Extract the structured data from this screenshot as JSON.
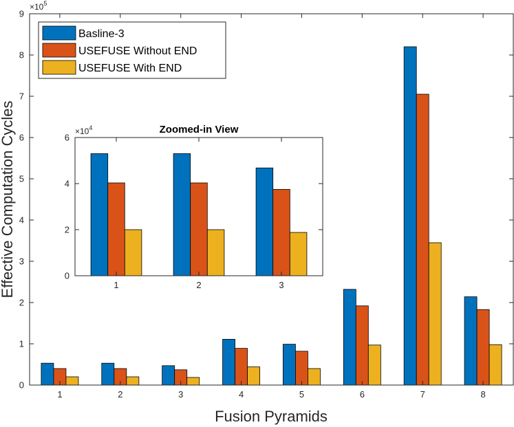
{
  "chart_data": {
    "type": "bar",
    "xlabel": "Fusion Pyramids",
    "ylabel": "Effective Computation Cycles",
    "y_multiplier_base": "×10",
    "y_multiplier_exp": "5",
    "categories": [
      "1",
      "2",
      "3",
      "4",
      "5",
      "6",
      "7",
      "8"
    ],
    "ylim": [
      0,
      900000
    ],
    "yticks": [
      0,
      100000,
      200000,
      300000,
      400000,
      500000,
      600000,
      700000,
      800000,
      900000
    ],
    "ytick_labels": [
      "0",
      "1",
      "2",
      "3",
      "4",
      "5",
      "6",
      "7",
      "8",
      "9"
    ],
    "colors": [
      "#0072BD",
      "#D95319",
      "#EDB120"
    ],
    "series": [
      {
        "name": "Basline-3",
        "values": [
          53000,
          53000,
          47000,
          111000,
          99000,
          232000,
          820000,
          214000
        ]
      },
      {
        "name": "USEFUSE Without END",
        "values": [
          40000,
          40000,
          37000,
          89000,
          82000,
          192000,
          705000,
          183000
        ]
      },
      {
        "name": "USEFUSE With END",
        "values": [
          20000,
          20000,
          18500,
          44000,
          40000,
          97000,
          345000,
          98000
        ]
      }
    ],
    "legend_position": "top-left",
    "inset": {
      "title": "Zoomed-in View",
      "categories": [
        "1",
        "2",
        "3"
      ],
      "ylim": [
        0,
        60000
      ],
      "yticks": [
        0,
        20000,
        40000,
        60000
      ],
      "ytick_labels": [
        "0",
        "2",
        "4",
        "6"
      ],
      "y_multiplier_base": "×10",
      "y_multiplier_exp": "4",
      "series": [
        {
          "name": "Basline-3",
          "values": [
            53000,
            53000,
            46800
          ]
        },
        {
          "name": "USEFUSE Without END",
          "values": [
            40300,
            40300,
            37500
          ]
        },
        {
          "name": "USEFUSE With END",
          "values": [
            20000,
            20000,
            18800
          ]
        }
      ]
    }
  }
}
